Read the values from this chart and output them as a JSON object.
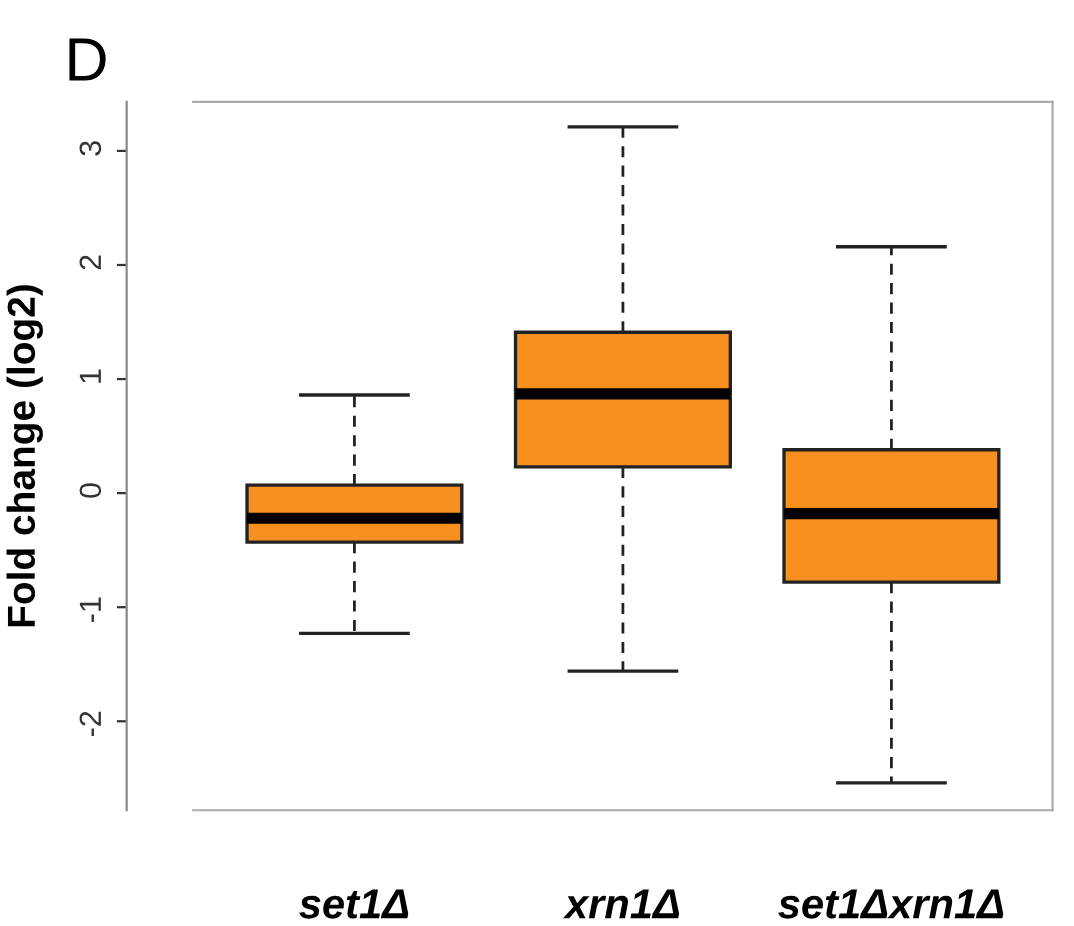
{
  "chart_data": {
    "type": "box",
    "title": "D",
    "ylabel": "Fold change (log2)",
    "categories": [
      "set1Δ",
      "xrn1Δ",
      "set1Δxrn1Δ"
    ],
    "boxes": [
      {
        "low": -1.23,
        "q1": -0.43,
        "median": -0.22,
        "q3": 0.07,
        "high": 0.86
      },
      {
        "low": -1.56,
        "q1": 0.23,
        "median": 0.87,
        "q3": 1.41,
        "high": 3.21
      },
      {
        "low": -2.54,
        "q1": -0.78,
        "median": -0.18,
        "q3": 0.38,
        "high": 2.16
      }
    ],
    "color": "#f7901e",
    "ylim": [
      -2.78,
      3.43
    ],
    "yticks": [
      -2,
      -1,
      0,
      1,
      2,
      3
    ],
    "grid": false
  }
}
